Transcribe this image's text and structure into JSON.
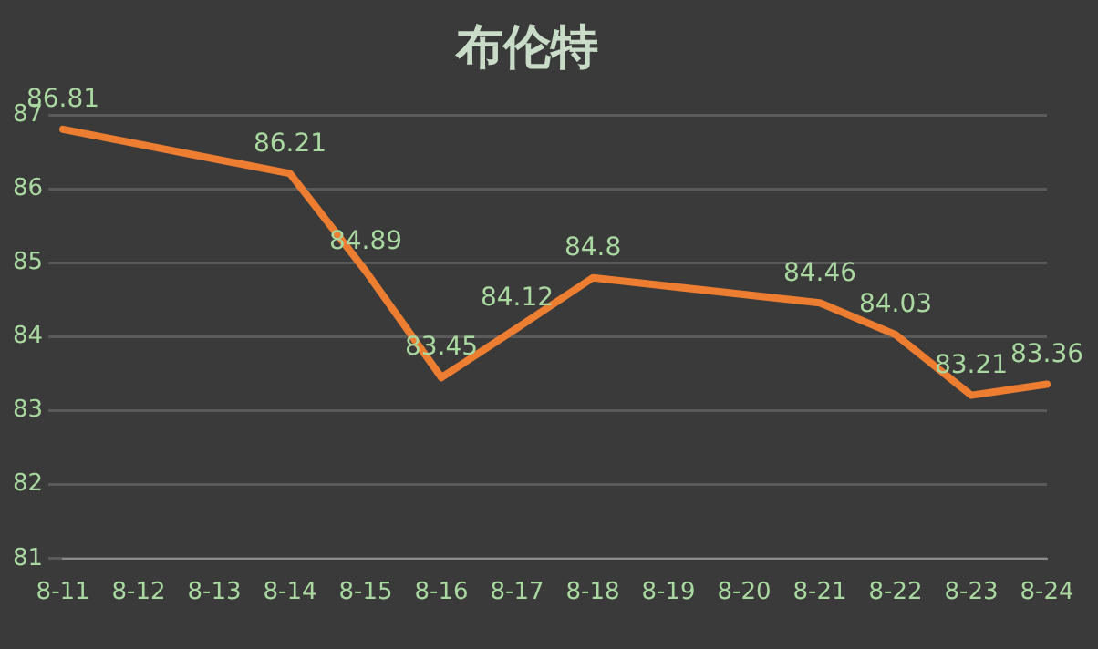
{
  "chart_data": {
    "type": "line",
    "title": "布伦特",
    "categories": [
      "8-11",
      "8-12",
      "8-13",
      "8-14",
      "8-15",
      "8-16",
      "8-17",
      "8-18",
      "8-19",
      "8-20",
      "8-21",
      "8-22",
      "8-23",
      "8-24"
    ],
    "series": [
      {
        "color": "#ed7d31",
        "values": [
          86.81,
          null,
          null,
          86.21,
          84.89,
          83.45,
          84.12,
          84.8,
          null,
          null,
          84.46,
          84.03,
          83.21,
          83.36
        ]
      }
    ],
    "ylim": [
      81,
      87
    ],
    "yticks": [
      81,
      82,
      83,
      84,
      85,
      86,
      87
    ],
    "grid": "y",
    "legend": false,
    "marker": "none",
    "data_labels": true
  }
}
